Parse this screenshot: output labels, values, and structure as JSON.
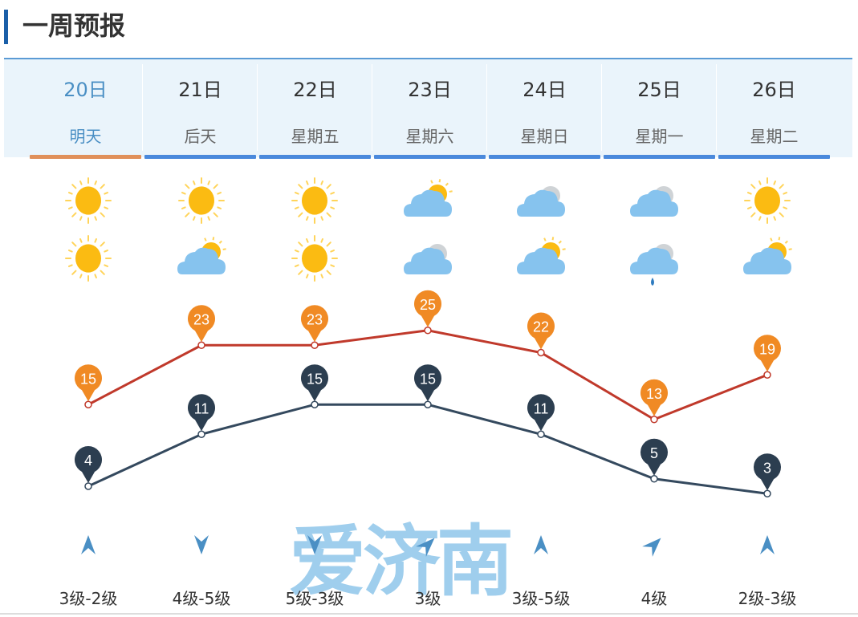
{
  "title": "一周预报",
  "watermark": "爱济南",
  "colors": {
    "accent": "#4a89dc",
    "active": "#e0905a",
    "high_line": "#c0392b",
    "high_pin": "#f08a24",
    "low_line": "#34495e",
    "low_pin": "#2c3e50",
    "wind": "#4a8fc4"
  },
  "days": [
    {
      "date": "20日",
      "weekday": "明天",
      "active": true,
      "day_icon": "sunny-icon",
      "night_icon": "sunny-icon",
      "high": 15,
      "low": 4,
      "wind_dir": 0,
      "wind": "3级-2级"
    },
    {
      "date": "21日",
      "weekday": "后天",
      "active": false,
      "day_icon": "sunny-icon",
      "night_icon": "partly-cloudy-icon",
      "high": 23,
      "low": 11,
      "wind_dir": 180,
      "wind": "4级-5级"
    },
    {
      "date": "22日",
      "weekday": "星期五",
      "active": false,
      "day_icon": "sunny-icon",
      "night_icon": "sunny-icon",
      "high": 23,
      "low": 15,
      "wind_dir": 180,
      "wind": "5级-3级"
    },
    {
      "date": "23日",
      "weekday": "星期六",
      "active": false,
      "day_icon": "partly-cloudy-icon",
      "night_icon": "cloudy-icon",
      "high": 25,
      "low": 15,
      "wind_dir": 45,
      "wind": "3级"
    },
    {
      "date": "24日",
      "weekday": "星期日",
      "active": false,
      "day_icon": "cloudy-icon",
      "night_icon": "partly-cloudy-icon",
      "high": 22,
      "low": 11,
      "wind_dir": 0,
      "wind": "3级-5级"
    },
    {
      "date": "25日",
      "weekday": "星期一",
      "active": false,
      "day_icon": "cloudy-icon",
      "night_icon": "light-rain-icon",
      "high": 13,
      "low": 5,
      "wind_dir": 45,
      "wind": "4级"
    },
    {
      "date": "26日",
      "weekday": "星期二",
      "active": false,
      "day_icon": "sunny-icon",
      "night_icon": "partly-cloudy-icon",
      "high": 19,
      "low": 3,
      "wind_dir": 0,
      "wind": "2级-3级"
    }
  ]
}
